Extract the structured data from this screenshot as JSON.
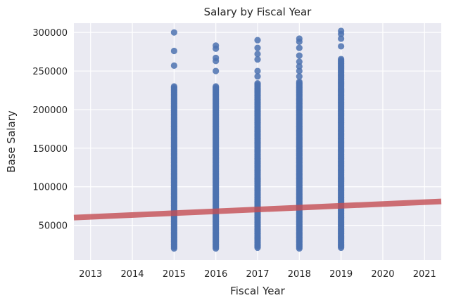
{
  "chart_data": {
    "type": "scatter",
    "title": "Salary by Fiscal Year",
    "xlabel": "Fiscal Year",
    "ylabel": "Base Salary",
    "xlim": [
      2012.6,
      2021.4
    ],
    "ylim": [
      5000,
      312000
    ],
    "x_ticks": [
      2013,
      2014,
      2015,
      2016,
      2017,
      2018,
      2019,
      2020,
      2021
    ],
    "y_ticks": [
      50000,
      100000,
      150000,
      200000,
      250000,
      300000
    ],
    "x_tick_labels": [
      "2013",
      "2014",
      "2015",
      "2016",
      "2017",
      "2018",
      "2019",
      "2020",
      "2021"
    ],
    "y_tick_labels": [
      "50000",
      "100000",
      "150000",
      "200000",
      "250000",
      "300000"
    ],
    "grid": true,
    "style": "seaborn-darkgrid",
    "colors": {
      "background": "#eaeaf2",
      "grid": "#ffffff",
      "points": "#4c72b0",
      "regression_line": "#c44e52"
    },
    "series": [
      {
        "kind": "scatter",
        "columns": [
          {
            "x": 2015,
            "min": 20000,
            "max": 231000,
            "outliers": [
              257000,
              276000,
              300000
            ]
          },
          {
            "x": 2016,
            "min": 20000,
            "max": 230000,
            "outliers": [
              250000,
              263000,
              267000,
              279000,
              283000
            ]
          },
          {
            "x": 2017,
            "min": 21000,
            "max": 235000,
            "outliers": [
              243000,
              250000,
              265000,
              272000,
              280000,
              290000
            ]
          },
          {
            "x": 2018,
            "min": 20000,
            "max": 237000,
            "outliers": [
              243000,
              250000,
              256000,
              262000,
              270000,
              280000,
              288000,
              292000
            ]
          },
          {
            "x": 2019,
            "min": 21000,
            "max": 266000,
            "outliers": [
              282000,
              292000,
              298000,
              302000
            ]
          }
        ]
      },
      {
        "kind": "regression_line",
        "x": [
          2012.6,
          2021.4
        ],
        "y": [
          60000,
          81000
        ]
      }
    ]
  }
}
